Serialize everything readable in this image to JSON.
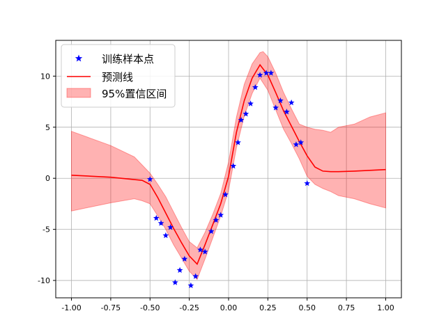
{
  "chart_data": {
    "type": "line",
    "title": "",
    "xlabel": "",
    "ylabel": "",
    "xlim": [
      -1.1,
      1.1
    ],
    "ylim": [
      -11.7,
      13.5
    ],
    "xticks": [
      -1.0,
      -0.75,
      -0.5,
      -0.25,
      0.0,
      0.25,
      0.5,
      0.75,
      1.0
    ],
    "xtick_labels": [
      "-1.00",
      "-0.75",
      "-0.50",
      "-0.25",
      "0.00",
      "0.25",
      "0.50",
      "0.75",
      "1.00"
    ],
    "yticks": [
      -10,
      -5,
      0,
      5,
      10
    ],
    "ytick_labels": [
      "-10",
      "-5",
      "0",
      "5",
      "10"
    ],
    "grid": true,
    "legend_position": "upper-left",
    "legend": {
      "train": "训练样本点",
      "pred": "预测线",
      "ci": "95%置信区间"
    },
    "colors": {
      "train": "#0000ff",
      "pred": "#ff0000",
      "ci": "#ff0000"
    },
    "train_points": {
      "x": [
        -0.5,
        -0.46,
        -0.43,
        -0.4,
        -0.37,
        -0.34,
        -0.31,
        -0.28,
        -0.24,
        -0.21,
        -0.18,
        -0.15,
        -0.11,
        -0.08,
        -0.05,
        -0.02,
        0.03,
        0.06,
        0.08,
        0.11,
        0.14,
        0.17,
        0.2,
        0.24,
        0.27,
        0.3,
        0.33,
        0.37,
        0.4,
        0.43,
        0.46,
        0.5
      ],
      "y": [
        -0.1,
        -3.9,
        -4.4,
        -5.6,
        -4.8,
        -10.2,
        -9.0,
        -7.9,
        -10.5,
        -9.6,
        -7.0,
        -7.2,
        -5.2,
        -4.1,
        -3.6,
        -1.6,
        1.2,
        3.5,
        5.7,
        6.3,
        7.3,
        8.9,
        10.1,
        10.3,
        10.3,
        6.9,
        7.6,
        6.5,
        7.4,
        3.3,
        3.5,
        -0.5
      ]
    },
    "prediction": {
      "x": [
        -1.0,
        -0.75,
        -0.55,
        -0.5,
        -0.45,
        -0.4,
        -0.35,
        -0.3,
        -0.25,
        -0.2,
        -0.15,
        -0.1,
        -0.05,
        0.0,
        0.05,
        0.1,
        0.15,
        0.2,
        0.25,
        0.3,
        0.35,
        0.4,
        0.45,
        0.5,
        0.55,
        0.6,
        0.65,
        0.7,
        0.8,
        0.9,
        1.0
      ],
      "y": [
        0.3,
        0.1,
        -0.2,
        -0.6,
        -1.9,
        -3.4,
        -4.9,
        -6.3,
        -7.6,
        -8.4,
        -6.5,
        -4.5,
        -2.5,
        0.2,
        4.5,
        7.6,
        9.8,
        11.1,
        10.1,
        8.4,
        6.6,
        5.1,
        3.6,
        2.2,
        1.1,
        0.7,
        0.65,
        0.65,
        0.7,
        0.78,
        0.85
      ]
    },
    "ci_upper": {
      "x": [
        -1.0,
        -0.75,
        -0.6,
        -0.55,
        -0.5,
        -0.45,
        -0.4,
        -0.35,
        -0.3,
        -0.25,
        -0.2,
        -0.15,
        -0.1,
        -0.05,
        0.0,
        0.05,
        0.1,
        0.15,
        0.2,
        0.22,
        0.25,
        0.3,
        0.35,
        0.4,
        0.45,
        0.5,
        0.55,
        0.6,
        0.65,
        0.7,
        0.8,
        0.9,
        1.0
      ],
      "y": [
        4.6,
        3.2,
        2.1,
        1.3,
        0.5,
        -0.6,
        -1.8,
        -3.3,
        -4.8,
        -6.2,
        -6.8,
        -5.3,
        -3.5,
        -1.5,
        1.6,
        6.0,
        9.2,
        11.2,
        12.3,
        12.4,
        11.9,
        10.3,
        8.4,
        6.8,
        5.3,
        5.0,
        4.8,
        4.7,
        4.5,
        5.0,
        5.3,
        6.0,
        6.4
      ]
    },
    "ci_lower": {
      "x": [
        -1.0,
        -0.75,
        -0.6,
        -0.55,
        -0.5,
        -0.45,
        -0.4,
        -0.35,
        -0.3,
        -0.25,
        -0.2,
        -0.15,
        -0.1,
        -0.05,
        0.0,
        0.05,
        0.1,
        0.15,
        0.2,
        0.25,
        0.3,
        0.35,
        0.4,
        0.45,
        0.5,
        0.55,
        0.6,
        0.65,
        0.7,
        0.8,
        0.9,
        1.0
      ],
      "y": [
        -3.2,
        -2.4,
        -2.0,
        -2.2,
        -2.5,
        -3.7,
        -5.0,
        -6.5,
        -7.8,
        -9.1,
        -9.9,
        -7.9,
        -5.8,
        -3.7,
        -1.2,
        3.0,
        6.1,
        8.3,
        9.8,
        8.6,
        6.7,
        4.8,
        3.4,
        1.9,
        0.2,
        -0.6,
        -1.0,
        -1.3,
        -1.7,
        -2.0,
        -2.5,
        -2.9
      ]
    }
  }
}
